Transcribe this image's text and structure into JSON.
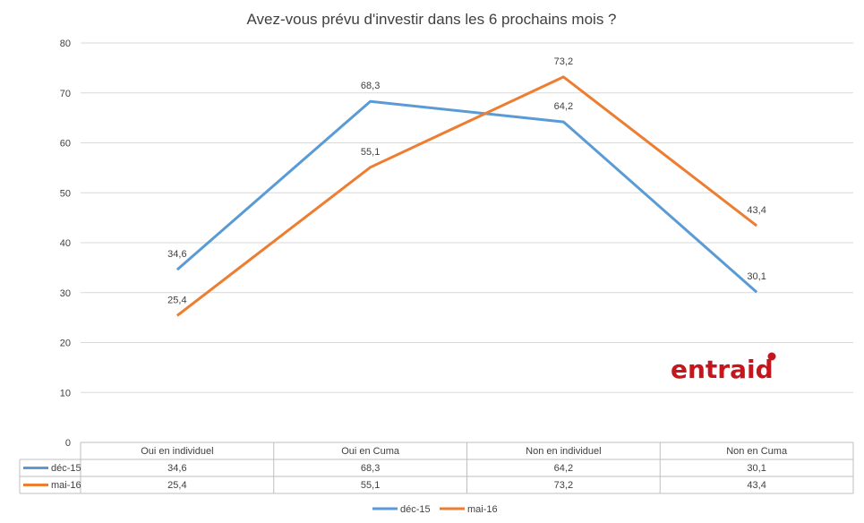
{
  "chart_data": {
    "type": "line",
    "title": "Avez-vous prévu d'investir dans les 6 prochains mois ?",
    "categories": [
      "Oui en individuel",
      "Oui en Cuma",
      "Non en individuel",
      "Non en Cuma"
    ],
    "series": [
      {
        "name": "déc-15",
        "values": [
          34.6,
          68.3,
          64.2,
          30.1
        ],
        "labels": [
          "34,6",
          "68,3",
          "64,2",
          "30,1"
        ],
        "color": "#5b9bd5"
      },
      {
        "name": "mai-16",
        "values": [
          25.4,
          55.1,
          73.2,
          43.4
        ],
        "labels": [
          "25,4",
          "55,1",
          "73,2",
          "43,4"
        ],
        "color": "#ed7d31"
      }
    ],
    "ylim": [
      0,
      80
    ],
    "yticks": [
      0,
      10,
      20,
      30,
      40,
      50,
      60,
      70,
      80
    ],
    "grid": true,
    "data_table": true,
    "legend": "bottom-center"
  },
  "logo": {
    "text": "entraid",
    "color": "#c5161d"
  }
}
